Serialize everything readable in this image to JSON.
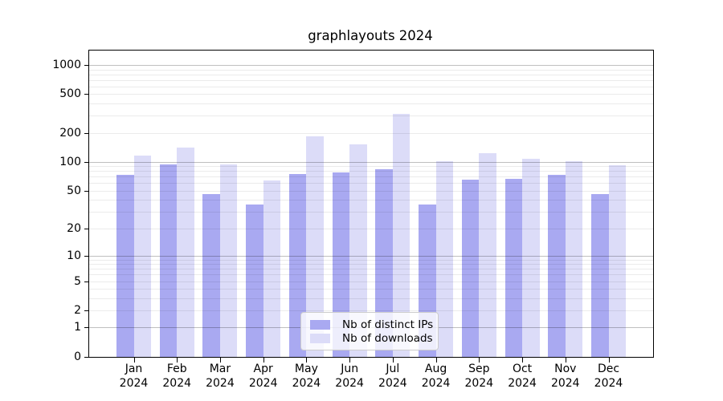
{
  "chart_data": {
    "type": "bar",
    "title": "graphlayouts 2024",
    "categories": [
      "Jan",
      "Feb",
      "Mar",
      "Apr",
      "May",
      "Jun",
      "Jul",
      "Aug",
      "Sep",
      "Oct",
      "Nov",
      "Dec"
    ],
    "category_year": "2024",
    "series": [
      {
        "name": "Nb of distinct IPs",
        "color": "#a9a9f1",
        "values": [
          73,
          94,
          46,
          36,
          75,
          77,
          84,
          36,
          65,
          67,
          74,
          46
        ]
      },
      {
        "name": "Nb of downloads",
        "color": "#dcdcf8",
        "values": [
          116,
          141,
          95,
          64,
          185,
          152,
          315,
          102,
          123,
          108,
          101,
          92
        ]
      }
    ],
    "yscale": "log1p",
    "yticks": [
      0,
      1,
      2,
      5,
      10,
      20,
      50,
      100,
      200,
      500,
      1000
    ],
    "ylim": [
      0,
      1410
    ],
    "xlabel": "",
    "ylabel": "",
    "grid": true,
    "legend_position": "inside-bottom-center"
  },
  "colors": {
    "background": "#ffffff",
    "axis": "#000000",
    "text": "#000000",
    "grid_major": "rgba(0,0,0,0.25)",
    "grid_minor": "rgba(0,0,0,0.08)",
    "legend_bg": "rgba(255,255,255,0.8)",
    "legend_border": "#cccccc"
  }
}
